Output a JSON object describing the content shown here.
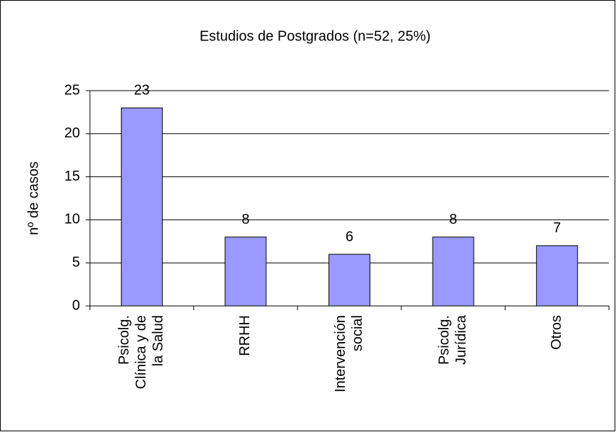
{
  "chart_data": {
    "type": "bar",
    "title": "Estudios de Postgrados (n=52, 25%)",
    "y_label": "nº de casos",
    "categories": [
      [
        "Psicolg.",
        "Clínica y de",
        "la Salud"
      ],
      [
        "RRHH"
      ],
      [
        "Intervención",
        "social"
      ],
      [
        "Psicolg.",
        "Jurídica"
      ],
      [
        "Otros"
      ]
    ],
    "values": [
      23,
      8,
      6,
      8,
      7
    ],
    "color": "#9999ff",
    "ylim": [
      0,
      25
    ],
    "yticks": [
      0,
      5,
      10,
      15,
      20,
      25
    ],
    "grid": true
  }
}
